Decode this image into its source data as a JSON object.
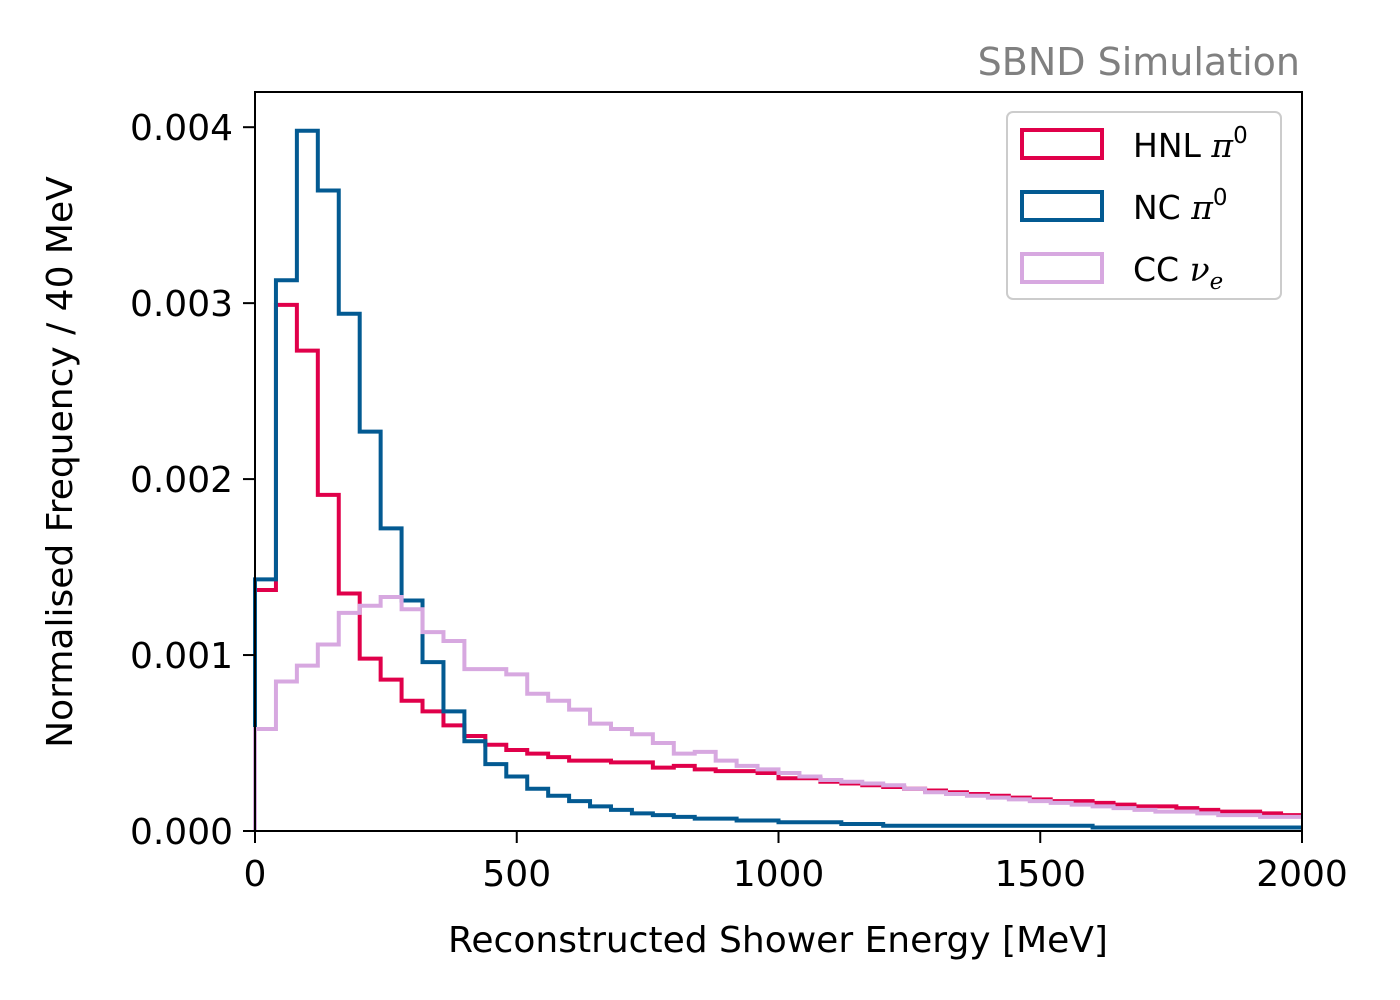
{
  "watermark": "SBND Simulation",
  "chart_data": {
    "type": "step-histogram",
    "xlabel": "Reconstructed Shower Energy [MeV]",
    "ylabel": "Normalised Frequency / 40 MeV",
    "xlim": [
      0,
      2000
    ],
    "ylim": [
      0,
      0.0042
    ],
    "xticks": [
      0,
      500,
      1000,
      1500,
      2000
    ],
    "xtick_labels": [
      "0",
      "500",
      "1000",
      "1500",
      "2000"
    ],
    "yticks": [
      0,
      0.001,
      0.002,
      0.003,
      0.004
    ],
    "ytick_labels": [
      "0.000",
      "0.001",
      "0.002",
      "0.003",
      "0.004"
    ],
    "bin_width": 40,
    "bin_edges_start": 0,
    "grid": false,
    "legend_position": "top-right",
    "series": [
      {
        "name": "HNL",
        "name_symbol": "π",
        "name_sup": "0",
        "color": "#e0004a",
        "values": [
          0.00137,
          0.00299,
          0.00273,
          0.00191,
          0.00135,
          0.00098,
          0.00086,
          0.00074,
          0.00068,
          0.0006,
          0.00054,
          0.00049,
          0.00046,
          0.00044,
          0.00042,
          0.0004,
          0.0004,
          0.00039,
          0.00039,
          0.00036,
          0.00037,
          0.00035,
          0.00034,
          0.00034,
          0.00033,
          0.0003,
          0.0003,
          0.00028,
          0.00027,
          0.00026,
          0.00025,
          0.00024,
          0.00023,
          0.00022,
          0.00021,
          0.0002,
          0.00019,
          0.00018,
          0.00017,
          0.00017,
          0.00016,
          0.00015,
          0.00014,
          0.00014,
          0.00013,
          0.00012,
          0.00011,
          0.00011,
          0.0001,
          9e-05
        ]
      },
      {
        "name": "NC",
        "name_symbol": "π",
        "name_sup": "0",
        "color": "#035a92",
        "values": [
          0.00143,
          0.00313,
          0.00398,
          0.00364,
          0.00294,
          0.00227,
          0.00172,
          0.00131,
          0.00096,
          0.00068,
          0.00051,
          0.00038,
          0.00031,
          0.00024,
          0.0002,
          0.00017,
          0.00014,
          0.00012,
          0.0001,
          9e-05,
          8e-05,
          7e-05,
          7e-05,
          6e-05,
          6e-05,
          5e-05,
          5e-05,
          5e-05,
          4e-05,
          4e-05,
          3e-05,
          3e-05,
          3e-05,
          3e-05,
          3e-05,
          3e-05,
          3e-05,
          3e-05,
          3e-05,
          3e-05,
          2e-05,
          2e-05,
          2e-05,
          2e-05,
          2e-05,
          2e-05,
          2e-05,
          2e-05,
          2e-05,
          2e-05
        ]
      },
      {
        "name": "CC",
        "name_symbol": "ν",
        "name_sub": "e",
        "color": "#d7a8e0",
        "values": [
          0.00058,
          0.00085,
          0.00094,
          0.00106,
          0.00124,
          0.00128,
          0.00133,
          0.00126,
          0.00113,
          0.00108,
          0.00092,
          0.00092,
          0.00089,
          0.00078,
          0.00074,
          0.00069,
          0.00061,
          0.00058,
          0.00055,
          0.0005,
          0.00044,
          0.00045,
          0.0004,
          0.00037,
          0.00035,
          0.00033,
          0.00031,
          0.00029,
          0.00028,
          0.00027,
          0.00026,
          0.00024,
          0.00022,
          0.00021,
          0.0002,
          0.00019,
          0.00018,
          0.00017,
          0.00016,
          0.00015,
          0.00014,
          0.00013,
          0.00012,
          0.00011,
          0.00011,
          0.0001,
          9e-05,
          9e-05,
          8e-05,
          8e-05
        ]
      }
    ]
  }
}
